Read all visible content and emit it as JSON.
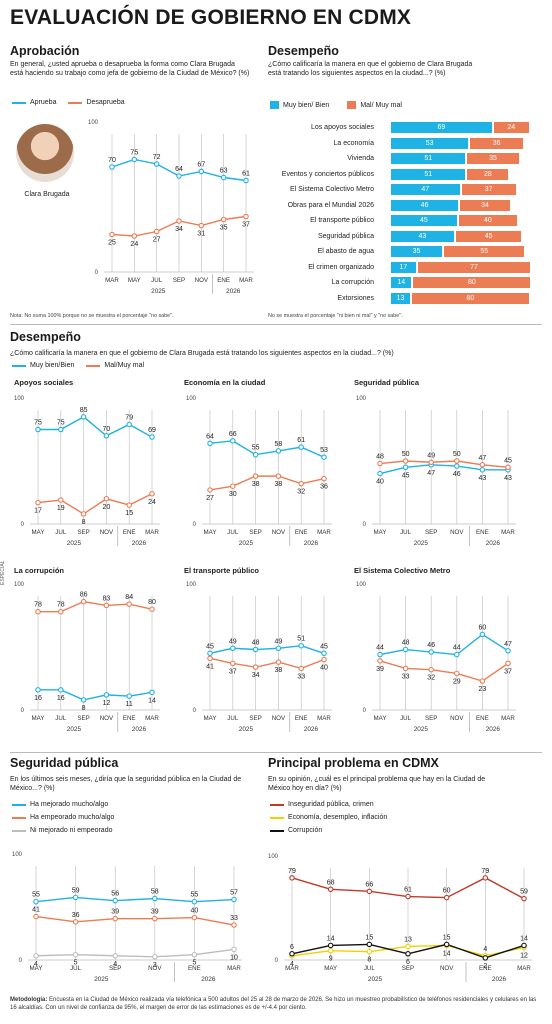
{
  "title": "EVALUACIÓN DE GOBIERNO EN CDMX",
  "colors": {
    "blue": "#1fb2e4",
    "orange": "#ec7c53",
    "gray": "#bdbdbd",
    "red": "#c0392b",
    "yellow": "#f2d000",
    "black": "#111111"
  },
  "aprobacion": {
    "title": "Aprobación",
    "question": "En general, ¿usted aprueba o desaprueba la forma como Clara Brugada está haciendo su trabajo como jefa de gobierno de la Ciudad de México? (%)",
    "person": "Clara Brugada",
    "note": "Nota: No suma 100% porque no se muestra el porcentaje \"no sabe\"."
  },
  "desempeno_bar": {
    "title": "Desempeño",
    "question": "¿Cómo calificaría la manera en que el gobierno de Clara Brugada está tratando los siguientes aspectos en la ciudad...? (%)",
    "note": "No se muestra el porcentaje \"ni bien ni mal\" y \"no sabe\"."
  },
  "desempeno_lines": {
    "title": "Desempeño",
    "question": "¿Cómo calificaría la manera en que el gobierno de Clara Brugada está tratando los siguientes aspectos en la ciudad...? (%)",
    "legend": [
      "Muy bien/Bien",
      "Mal/Muy mal"
    ],
    "side_label": "ESPECIAL"
  },
  "seguridad": {
    "title": "Seguridad pública",
    "question": "En los últimos seis meses, ¿diría que la seguridad pública en la Ciudad de México...? (%)"
  },
  "problema": {
    "title": "Principal problema en CDMX",
    "question": "En su opinión, ¿cuál es el principal problema que hay en la Ciudad de México hoy en día? (%)"
  },
  "metodologia": {
    "label": "Metodología:",
    "text": " Encuesta en la Ciudad de México realizada vía telefónica a 500 adultos del 25 al 28 de marzo de 2026. Se hizo un muestreo probabilístico de teléfonos residenciales y celulares en las 16 alcaldías. Con un nivel de confianza de 95%, el margen de error de las estimaciones es de +/-4.4 por ciento."
  },
  "chart_data": [
    {
      "id": "aprobacion",
      "type": "line",
      "categories": [
        "MAR",
        "MAY",
        "JUL",
        "SEP",
        "NOV",
        "ENE",
        "MAR"
      ],
      "year_labels": [
        "2025",
        "2026"
      ],
      "ylim": [
        0,
        100
      ],
      "yticks": [
        0,
        100
      ],
      "series": [
        {
          "name": "Aprueba",
          "color": "#1fb2e4",
          "values": [
            70,
            75,
            72,
            64,
            67,
            63,
            61
          ]
        },
        {
          "name": "Desaprueba",
          "color": "#ec7c53",
          "values": [
            25,
            24,
            27,
            34,
            31,
            35,
            37
          ]
        }
      ]
    },
    {
      "id": "desempeno_bars",
      "type": "bar",
      "orientation": "horizontal-stacked",
      "legend": [
        "Muy bien/ Bien",
        "Mal/ Muy mal"
      ],
      "categories": [
        "Los apoyos sociales",
        "La economía",
        "Vivienda",
        "Eventos y conciertos públicos",
        "El Sistema Colectivo Metro",
        "Obras para el Mundial 2026",
        "El transporte público",
        "Seguridad pública",
        "El abasto de agua",
        "El crimen organizado",
        "La corrupción",
        "Extorsiones"
      ],
      "series": [
        {
          "name": "Muy bien/ Bien",
          "color": "#1fb2e4",
          "values": [
            69,
            53,
            51,
            51,
            47,
            46,
            45,
            43,
            35,
            17,
            14,
            13
          ]
        },
        {
          "name": "Mal/ Muy mal",
          "color": "#ec7c53",
          "values": [
            24,
            36,
            35,
            28,
            37,
            34,
            40,
            45,
            55,
            77,
            80,
            80
          ]
        }
      ]
    },
    {
      "id": "apoyos",
      "type": "line",
      "title": "Apoyos sociales",
      "categories": [
        "MAY",
        "JUL",
        "SEP",
        "NOV",
        "ENE",
        "MAR"
      ],
      "year_labels": [
        "2025",
        "2026"
      ],
      "ylim": [
        0,
        100
      ],
      "yticks": [
        0,
        100
      ],
      "series": [
        {
          "name": "Muy bien/Bien",
          "color": "#1fb2e4",
          "values": [
            75,
            75,
            85,
            70,
            79,
            69
          ]
        },
        {
          "name": "Mal/Muy mal",
          "color": "#ec7c53",
          "values": [
            17,
            19,
            8,
            20,
            15,
            24
          ]
        }
      ]
    },
    {
      "id": "economia",
      "type": "line",
      "title": "Economía en la ciudad",
      "categories": [
        "MAY",
        "JUL",
        "SEP",
        "NOV",
        "ENE",
        "MAR"
      ],
      "year_labels": [
        "2025",
        "2026"
      ],
      "ylim": [
        0,
        100
      ],
      "yticks": [
        0,
        100
      ],
      "series": [
        {
          "name": "Muy bien/Bien",
          "color": "#1fb2e4",
          "values": [
            64,
            66,
            55,
            58,
            61,
            53
          ]
        },
        {
          "name": "Mal/Muy mal",
          "color": "#ec7c53",
          "values": [
            27,
            30,
            38,
            38,
            32,
            36
          ]
        }
      ]
    },
    {
      "id": "seguridad_des",
      "type": "line",
      "title": "Seguridad pública",
      "categories": [
        "MAY",
        "JUL",
        "SEP",
        "NOV",
        "ENE",
        "MAR"
      ],
      "year_labels": [
        "2025",
        "2026"
      ],
      "ylim": [
        0,
        100
      ],
      "yticks": [
        0,
        100
      ],
      "series": [
        {
          "name": "Muy bien/Bien",
          "color": "#1fb2e4",
          "values": [
            40,
            45,
            47,
            46,
            43,
            43
          ]
        },
        {
          "name": "Mal/Muy mal",
          "color": "#ec7c53",
          "values": [
            48,
            50,
            49,
            50,
            47,
            45
          ]
        }
      ]
    },
    {
      "id": "corrupcion",
      "type": "line",
      "title": "La corrupción",
      "categories": [
        "MAY",
        "JUL",
        "SEP",
        "NOV",
        "ENE",
        "MAR"
      ],
      "year_labels": [
        "2025",
        "2026"
      ],
      "ylim": [
        0,
        100
      ],
      "yticks": [
        0,
        100
      ],
      "series": [
        {
          "name": "Muy bien/Bien",
          "color": "#1fb2e4",
          "values": [
            16,
            16,
            8,
            12,
            11,
            14
          ]
        },
        {
          "name": "Mal/Muy mal",
          "color": "#ec7c53",
          "values": [
            78,
            78,
            86,
            83,
            84,
            80
          ]
        }
      ]
    },
    {
      "id": "transporte",
      "type": "line",
      "title": "El transporte público",
      "categories": [
        "MAY",
        "JUL",
        "SEP",
        "NOV",
        "ENE",
        "MAR"
      ],
      "year_labels": [
        "2025",
        "2026"
      ],
      "ylim": [
        0,
        100
      ],
      "yticks": [
        0,
        100
      ],
      "series": [
        {
          "name": "Muy bien/Bien",
          "color": "#1fb2e4",
          "values": [
            45,
            49,
            48,
            49,
            51,
            45
          ]
        },
        {
          "name": "Mal/Muy mal",
          "color": "#ec7c53",
          "values": [
            41,
            37,
            34,
            38,
            33,
            40
          ]
        }
      ]
    },
    {
      "id": "metro",
      "type": "line",
      "title": "El Sistema Colectivo Metro",
      "categories": [
        "MAY",
        "JUL",
        "SEP",
        "NOV",
        "ENE",
        "MAR"
      ],
      "year_labels": [
        "2025",
        "2026"
      ],
      "ylim": [
        0,
        100
      ],
      "yticks": [
        0,
        100
      ],
      "series": [
        {
          "name": "Muy bien/Bien",
          "color": "#1fb2e4",
          "values": [
            44,
            48,
            46,
            44,
            60,
            47
          ]
        },
        {
          "name": "Mal/Muy mal",
          "color": "#ec7c53",
          "values": [
            39,
            33,
            32,
            29,
            23,
            37
          ]
        }
      ]
    },
    {
      "id": "seguridad_tendencia",
      "type": "line",
      "categories": [
        "MAY",
        "JUL",
        "SEP",
        "NOV",
        "ENE",
        "MAR"
      ],
      "year_labels": [
        "2025",
        "2026"
      ],
      "ylim": [
        0,
        100
      ],
      "yticks": [
        0,
        100
      ],
      "series": [
        {
          "name": "Ha mejorado mucho/algo",
          "color": "#1fb2e4",
          "values": [
            55,
            59,
            56,
            58,
            55,
            57
          ]
        },
        {
          "name": "Ha empeorado mucho/algo",
          "color": "#ec7c53",
          "values": [
            41,
            36,
            39,
            39,
            40,
            33
          ]
        },
        {
          "name": "Ni mejorado ni empeorado",
          "color": "#bdbdbd",
          "values": [
            4,
            5,
            4,
            3,
            5,
            10
          ]
        }
      ]
    },
    {
      "id": "problema",
      "type": "line",
      "categories": [
        "MAR",
        "MAY",
        "JUL",
        "SEP",
        "NOV",
        "ENE",
        "MAR"
      ],
      "year_labels": [
        "2025",
        "2026"
      ],
      "ylim": [
        0,
        100
      ],
      "yticks": [
        0,
        100
      ],
      "series": [
        {
          "name": "Inseguridad pública, crimen",
          "color": "#c0392b",
          "values": [
            79,
            68,
            66,
            61,
            60,
            79,
            59
          ]
        },
        {
          "name": "Economía, desempleo, inflación",
          "color": "#f2d000",
          "values": [
            4,
            9,
            8,
            13,
            14,
            4,
            12
          ]
        },
        {
          "name": "Corrupción",
          "color": "#111111",
          "values": [
            6,
            14,
            15,
            6,
            15,
            2,
            14
          ]
        }
      ]
    }
  ]
}
